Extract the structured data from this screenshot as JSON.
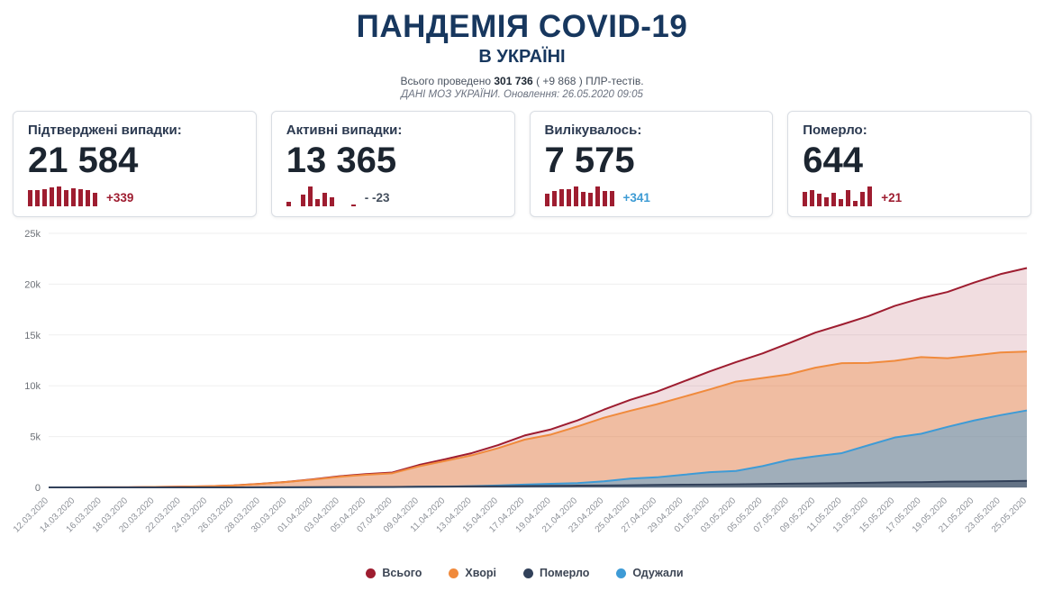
{
  "header": {
    "title": "ПАНДЕМІЯ COVID-19",
    "subtitle": "В УКРАЇНІ",
    "tests_line": {
      "prefix": "Всього проведено",
      "total": "301 736",
      "delta": "( +9 868 )",
      "suffix": "ПЛР-тестів."
    },
    "source_line": "ДАНІ МОЗ УКРАЇНИ. Оновлення: 26.05.2020 09:05"
  },
  "cards": [
    {
      "label": "Підтверджені випадки:",
      "value": "21 584",
      "change": "+339",
      "change_color": "#9e1d30",
      "spark": [
        402,
        416,
        433,
        476,
        504,
        406,
        460,
        432,
        419,
        339
      ]
    },
    {
      "label": "Активні випадки:",
      "value": "13 365",
      "change": "- -23",
      "change_color": "#45505e",
      "spark": [
        60,
        0,
        150,
        260,
        90,
        180,
        120,
        0,
        0,
        -23
      ]
    },
    {
      "label": "Вилікувалось:",
      "value": "7 575",
      "change": "+341",
      "change_color": "#3d9bd4",
      "spark": [
        266,
        331,
        370,
        371,
        433,
        309,
        288,
        433,
        330,
        341
      ]
    },
    {
      "label": "Померло:",
      "value": "644",
      "change": "+21",
      "change_color": "#9e1d30",
      "spark": [
        15,
        17,
        13,
        10,
        14,
        8,
        17,
        6,
        15,
        21
      ]
    }
  ],
  "chart_data": {
    "type": "area",
    "title": "",
    "xlabel": "",
    "ylabel": "",
    "ylim": [
      0,
      25000
    ],
    "yticks": [
      "0",
      "5k",
      "10k",
      "15k",
      "20k",
      "25k"
    ],
    "grid": true,
    "legend_position": "bottom",
    "categories": [
      "12.03.2020",
      "14.03.2020",
      "16.03.2020",
      "18.03.2020",
      "20.03.2020",
      "22.03.2020",
      "24.03.2020",
      "26.03.2020",
      "28.03.2020",
      "30.03.2020",
      "01.04.2020",
      "03.04.2020",
      "05.04.2020",
      "07.04.2020",
      "09.04.2020",
      "11.04.2020",
      "13.04.2020",
      "15.04.2020",
      "17.04.2020",
      "19.04.2020",
      "21.04.2020",
      "23.04.2020",
      "25.04.2020",
      "27.04.2020",
      "29.04.2020",
      "01.05.2020",
      "03.05.2020",
      "05.05.2020",
      "07.05.2020",
      "09.05.2020",
      "11.05.2020",
      "13.05.2020",
      "15.05.2020",
      "17.05.2020",
      "19.05.2020",
      "21.05.2020",
      "23.05.2020",
      "25.05.2020"
    ],
    "series": [
      {
        "name": "Всього",
        "color": "#9e1d30",
        "fill_opacity": 0.15,
        "values": [
          3,
          3,
          7,
          14,
          41,
          73,
          113,
          196,
          356,
          548,
          794,
          1096,
          1308,
          1462,
          2203,
          2777,
          3372,
          4161,
          5106,
          5710,
          6592,
          7647,
          8617,
          9410,
          10406,
          11411,
          12331,
          13184,
          14195,
          15232,
          16023,
          16847,
          17858,
          18616,
          19230,
          20148,
          20986,
          21584
        ]
      },
      {
        "name": "Хворі",
        "color": "#f08a3c",
        "fill_opacity": 0.38,
        "values": [
          3,
          3,
          7,
          14,
          40,
          69,
          108,
          190,
          342,
          527,
          761,
          1046,
          1243,
          1389,
          2073,
          2605,
          3155,
          3859,
          4698,
          5200,
          5994,
          6853,
          7539,
          8179,
          8907,
          9634,
          10409,
          10760,
          11128,
          11781,
          12225,
          12248,
          12455,
          12826,
          12711,
          12984,
          13273,
          13365
        ]
      },
      {
        "name": "Одужали",
        "color": "#3e9bd6",
        "fill_opacity": 0.45,
        "values": [
          0,
          0,
          0,
          0,
          0,
          1,
          1,
          1,
          5,
          8,
          13,
          22,
          28,
          28,
          61,
          89,
          119,
          186,
          275,
          359,
          424,
          601,
          869,
          992,
          1238,
          1498,
          1619,
          2097,
          2706,
          3060,
          3373,
          4143,
          4906,
          5276,
          5955,
          6585,
          7108,
          7575
        ]
      },
      {
        "name": "Померло",
        "color": "#32415a",
        "fill_opacity": 0.55,
        "values": [
          0,
          0,
          0,
          0,
          1,
          3,
          4,
          5,
          9,
          13,
          20,
          28,
          37,
          45,
          69,
          83,
          98,
          116,
          133,
          151,
          174,
          193,
          209,
          239,
          261,
          279,
          303,
          327,
          361,
          391,
          425,
          456,
          497,
          514,
          564,
          579,
          605,
          644
        ]
      }
    ],
    "legend": [
      {
        "label": "Всього",
        "color": "#9e1d30"
      },
      {
        "label": "Хворі",
        "color": "#f08a3c"
      },
      {
        "label": "Померло",
        "color": "#32415a"
      },
      {
        "label": "Одужали",
        "color": "#3e9bd6"
      }
    ]
  }
}
